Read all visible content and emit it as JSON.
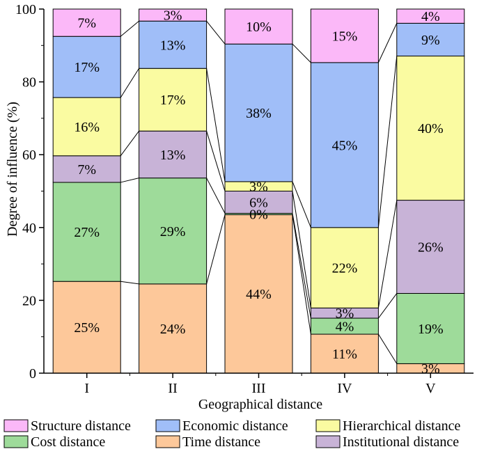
{
  "chart_data": {
    "type": "bar",
    "stacked": true,
    "xlabel": "Geographical distance",
    "ylabel": "Degree of influence (%)",
    "ylim": [
      0,
      100
    ],
    "yticks": [
      0,
      20,
      40,
      60,
      80,
      100
    ],
    "categories": [
      "I",
      "II",
      "III",
      "IV",
      "V"
    ],
    "series": [
      {
        "name": "Time distance",
        "color": "#FDC89A",
        "values": [
          25.2,
          24.5,
          43.5,
          10.7,
          2.6
        ],
        "labels": [
          "25%",
          "24%",
          "44%",
          "11%",
          "3%"
        ]
      },
      {
        "name": "Cost distance",
        "color": "#9EDB9A",
        "values": [
          27.2,
          29.1,
          0.4,
          4.4,
          19.3
        ],
        "labels": [
          "27%",
          "29%",
          "0%",
          "4%",
          "19%"
        ]
      },
      {
        "name": "Institutional distance",
        "color": "#C8B3D7",
        "values": [
          7.3,
          12.9,
          6.1,
          2.8,
          25.6
        ],
        "labels": [
          "7%",
          "13%",
          "6%",
          "3%",
          "26%"
        ]
      },
      {
        "name": "Hierarchical distance",
        "color": "#FAFBA1",
        "values": [
          16.0,
          17.2,
          2.6,
          22.1,
          39.6
        ],
        "labels": [
          "16%",
          "17%",
          "3%",
          "22%",
          "40%"
        ]
      },
      {
        "name": "Economic distance",
        "color": "#A0BEF8",
        "values": [
          16.8,
          13.0,
          37.8,
          45.3,
          9.0
        ],
        "labels": [
          "17%",
          "13%",
          "38%",
          "45%",
          "9%"
        ]
      },
      {
        "name": "Structure distance",
        "color": "#FBB8F8",
        "values": [
          7.5,
          3.3,
          9.6,
          14.7,
          3.9
        ],
        "labels": [
          "7%",
          "3%",
          "10%",
          "15%",
          "4%"
        ]
      }
    ],
    "legend": {
      "position": "bottom",
      "order": [
        "Structure distance",
        "Economic distance",
        "Hierarchical distance",
        "Cost distance",
        "Time distance",
        "Institutional distance"
      ]
    },
    "grid": false
  }
}
